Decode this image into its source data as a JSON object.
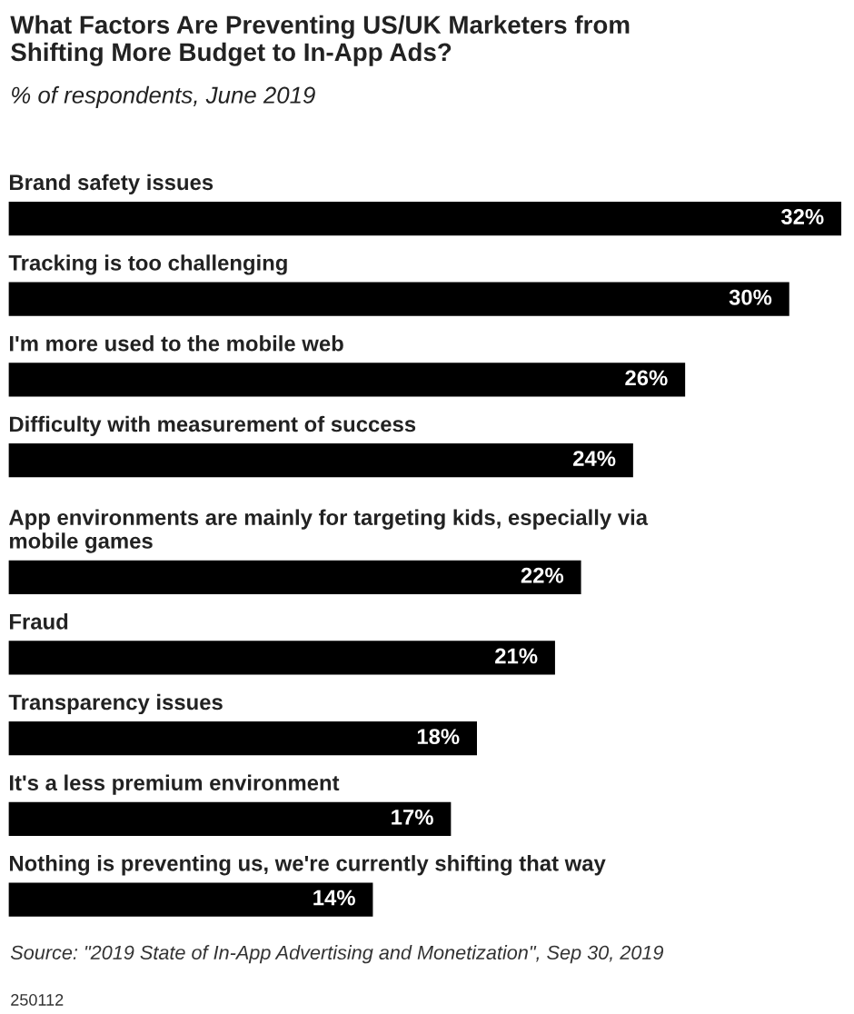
{
  "chart_data": {
    "type": "bar",
    "orientation": "horizontal",
    "title": "What Factors Are Preventing US/UK Marketers from\nShifting More Budget to In-App Ads?",
    "subtitle": "% of respondents, June 2019",
    "categories": [
      "Brand safety issues",
      "Tracking is too challenging",
      "I'm more used to the mobile web",
      "Difficulty with measurement of success",
      "App environments are mainly for targeting kids, especially via\nmobile games",
      "Fraud",
      "Transparency issues",
      "It's a less premium environment",
      "Nothing is preventing us, we're currently shifting that way"
    ],
    "values": [
      32,
      30,
      26,
      24,
      22,
      21,
      18,
      17,
      14
    ],
    "value_labels": [
      "32%",
      "30%",
      "26%",
      "24%",
      "22%",
      "21%",
      "18%",
      "17%",
      "14%"
    ],
    "color": "#000000",
    "annotations": [
      "Source: \"2019 State of In-App Advertising and Monetization\", Sep 30, 2019",
      "250112"
    ]
  }
}
